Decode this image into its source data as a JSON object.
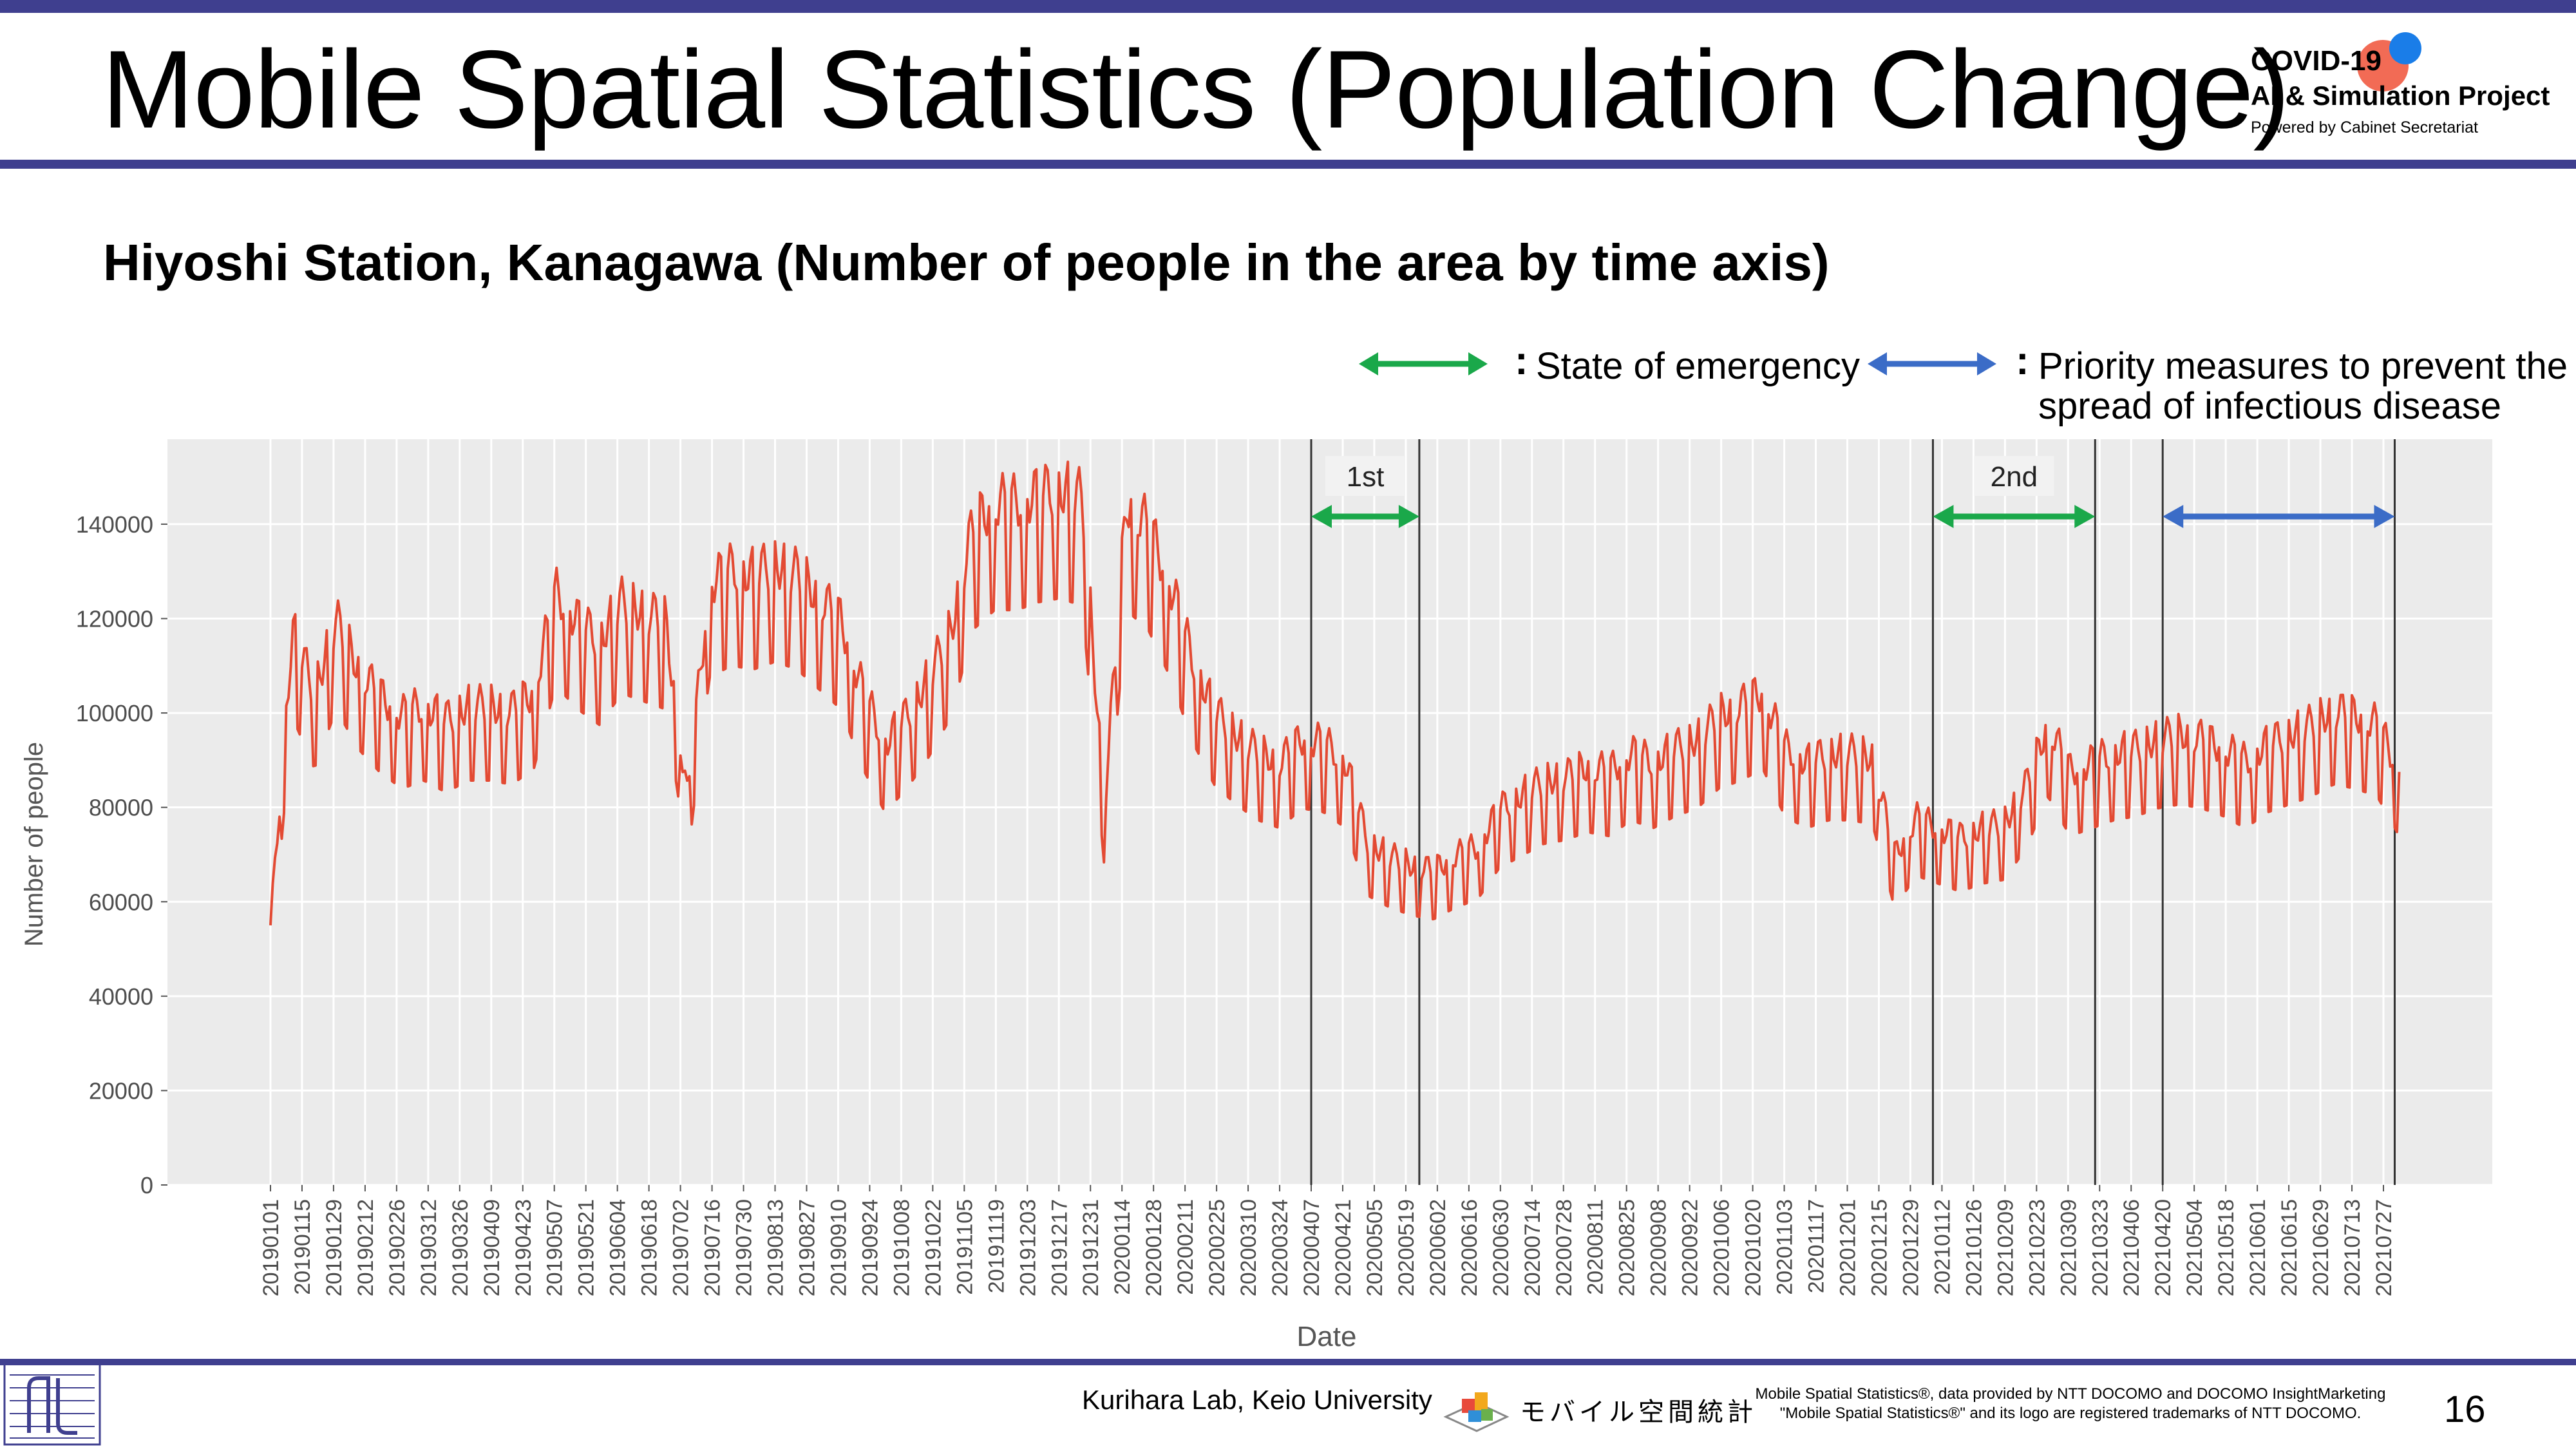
{
  "slide": {
    "title": "Mobile Spatial Statistics (Population Change)",
    "subtitle": "Hiyoshi Station, Kanagawa (Number of people in the area by time axis)",
    "page_number": "16"
  },
  "logo": {
    "line1": "COVID-19",
    "line2": "AI & Simulation Project",
    "line3": "Powered by Cabinet Secretariat"
  },
  "legend": {
    "emergency_label": "State of emergency",
    "priority_label_line1": "Priority measures to prevent the",
    "priority_label_line2": "spread of infectious disease",
    "emergency_color": "#1aa84a",
    "priority_color": "#3b6cc7"
  },
  "footer": {
    "lab": "Kurihara Lab, Keio University",
    "brand": "モバイル空間統計",
    "note_line1": "Mobile Spatial Statistics®, data provided by NTT DOCOMO and DOCOMO InsightMarketing",
    "note_line2": "\"Mobile Spatial Statistics®\" and its logo are registered trademarks of NTT DOCOMO."
  },
  "chart_data": {
    "type": "line",
    "title": "",
    "xlabel": "Date",
    "ylabel": "Number of people",
    "ylim": [
      0,
      158000
    ],
    "yticks": [
      0,
      20000,
      40000,
      60000,
      80000,
      100000,
      120000,
      140000
    ],
    "line_color": "#e34a33",
    "panel_color": "#ebebeb",
    "grid": true,
    "x_tick_labels": [
      "20190101",
      "20190115",
      "20190129",
      "20190212",
      "20190226",
      "20190312",
      "20190326",
      "20190409",
      "20190423",
      "20190507",
      "20190521",
      "20190604",
      "20190618",
      "20190702",
      "20190716",
      "20190730",
      "20190813",
      "20190827",
      "20190910",
      "20190924",
      "20191008",
      "20191022",
      "20191105",
      "20191119",
      "20191203",
      "20191217",
      "20191231",
      "20200114",
      "20200128",
      "20200211",
      "20200225",
      "20200310",
      "20200324",
      "20200407",
      "20200421",
      "20200505",
      "20200519",
      "20200602",
      "20200616",
      "20200630",
      "20200714",
      "20200728",
      "20200811",
      "20200825",
      "20200908",
      "20200922",
      "20201006",
      "20201020",
      "20201103",
      "20201117",
      "20201201",
      "20201215",
      "20201229",
      "20210112",
      "20210126",
      "20210209",
      "20210223",
      "20210309",
      "20210323",
      "20210406",
      "20210420",
      "20210504",
      "20210518",
      "20210601",
      "20210615",
      "20210629",
      "20210713",
      "20210727"
    ],
    "series": [
      {
        "values": [
          55000,
          118000,
          105000,
          120000,
          110000,
          104000,
          100000,
          102000,
          99000,
          102000,
          102000,
          101000,
          105000,
          126000,
          120000,
          116000,
          124000,
          122000,
          120000,
          82000,
          128000,
          131000,
          130000,
          132000,
          130000,
          125000,
          120000,
          105000,
          94000,
          100000,
          108000,
          118000,
          140000,
          145000,
          145000,
          147000,
          148000,
          146000,
          80000,
          145000,
          140000,
          128000,
          112000,
          101000,
          96000,
          92000,
          90000,
          95000,
          94000,
          90000,
          73000,
          70000,
          68000,
          67000,
          70000,
          72000,
          80000,
          83000,
          86000,
          87000,
          89000,
          88000,
          92000,
          90000,
          93000,
          95000,
          100000,
          102000,
          105000,
          93000,
          90000,
          92000,
          92000,
          91000,
          70000,
          78000,
          76000,
          74000,
          76000,
          77000,
          85000,
          98000,
          88000,
          90000,
          92000,
          93000,
          95000,
          96000,
          95000,
          93000,
          90000,
          94000,
          96000,
          98000,
          101000,
          100000,
          98000,
          88000
        ]
      }
    ],
    "series_start_date": "20190101",
    "series_end_date": "20210803",
    "annotations": [
      {
        "label": "1st",
        "kind": "emergency",
        "start": "20200407",
        "end": "20200525"
      },
      {
        "label": "2nd",
        "kind": "emergency",
        "start": "20210108",
        "end": "20210321"
      },
      {
        "label": "",
        "kind": "priority",
        "start": "20210420",
        "end": "20210801"
      }
    ]
  }
}
